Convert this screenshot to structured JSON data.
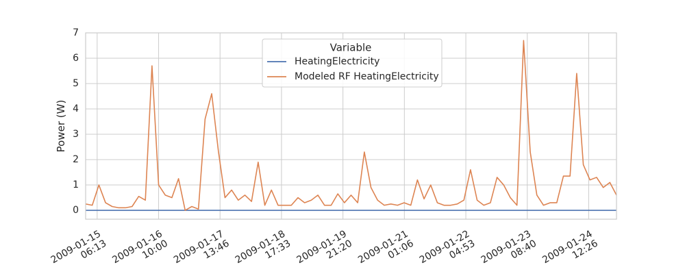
{
  "chart_data": {
    "type": "line",
    "ylabel": "Power (W)",
    "legend_title": "Variable",
    "legend_loc": "upper center",
    "grid": true,
    "x": [
      "2009-01-15 01:00",
      "2009-01-15 04:00",
      "2009-01-15 07:00",
      "2009-01-15 10:00",
      "2009-01-15 13:00",
      "2009-01-15 16:00",
      "2009-01-15 19:00",
      "2009-01-15 22:00",
      "2009-01-16 01:00",
      "2009-01-16 04:00",
      "2009-01-16 07:00",
      "2009-01-16 10:00",
      "2009-01-16 13:00",
      "2009-01-16 16:00",
      "2009-01-16 19:00",
      "2009-01-16 22:00",
      "2009-01-17 01:00",
      "2009-01-17 04:00",
      "2009-01-17 07:00",
      "2009-01-17 10:00",
      "2009-01-17 13:00",
      "2009-01-17 16:00",
      "2009-01-17 19:00",
      "2009-01-17 22:00",
      "2009-01-18 01:00",
      "2009-01-18 04:00",
      "2009-01-18 07:00",
      "2009-01-18 10:00",
      "2009-01-18 13:00",
      "2009-01-18 16:00",
      "2009-01-18 19:00",
      "2009-01-18 22:00",
      "2009-01-19 01:00",
      "2009-01-19 04:00",
      "2009-01-19 07:00",
      "2009-01-19 10:00",
      "2009-01-19 13:00",
      "2009-01-19 16:00",
      "2009-01-19 19:00",
      "2009-01-19 22:00",
      "2009-01-20 01:00",
      "2009-01-20 04:00",
      "2009-01-20 07:00",
      "2009-01-20 10:00",
      "2009-01-20 13:00",
      "2009-01-20 16:00",
      "2009-01-20 19:00",
      "2009-01-20 22:00",
      "2009-01-21 01:00",
      "2009-01-21 04:00",
      "2009-01-21 07:00",
      "2009-01-21 10:00",
      "2009-01-21 13:00",
      "2009-01-21 16:00",
      "2009-01-21 19:00",
      "2009-01-21 22:00",
      "2009-01-22 01:00",
      "2009-01-22 04:00",
      "2009-01-22 07:00",
      "2009-01-22 10:00",
      "2009-01-22 13:00",
      "2009-01-22 16:00",
      "2009-01-22 19:00",
      "2009-01-22 22:00",
      "2009-01-23 01:00",
      "2009-01-23 04:00",
      "2009-01-23 07:00",
      "2009-01-23 10:00",
      "2009-01-23 13:00",
      "2009-01-23 16:00",
      "2009-01-23 19:00",
      "2009-01-23 22:00",
      "2009-01-24 01:00",
      "2009-01-24 04:00",
      "2009-01-24 07:00",
      "2009-01-24 10:00",
      "2009-01-24 13:00",
      "2009-01-24 16:00",
      "2009-01-24 19:00",
      "2009-01-24 22:00",
      "2009-01-25 01:00"
    ],
    "series": [
      {
        "name": "HeatingElectricity",
        "color": "#4c72b0",
        "values": [
          0,
          0,
          0,
          0,
          0,
          0,
          0,
          0,
          0,
          0,
          0,
          0,
          0,
          0,
          0,
          0,
          0,
          0,
          0,
          0,
          0,
          0,
          0,
          0,
          0,
          0,
          0,
          0,
          0,
          0,
          0,
          0,
          0,
          0,
          0,
          0,
          0,
          0,
          0,
          0,
          0,
          0,
          0,
          0,
          0,
          0,
          0,
          0,
          0,
          0,
          0,
          0,
          0,
          0,
          0,
          0,
          0,
          0,
          0,
          0,
          0,
          0,
          0,
          0,
          0,
          0,
          0,
          0,
          0,
          0,
          0,
          0,
          0,
          0,
          0,
          0,
          0,
          0,
          0,
          0,
          0
        ]
      },
      {
        "name": "Modeled RF HeatingElectricity",
        "color": "#dd8452",
        "values": [
          0.25,
          0.2,
          1.0,
          0.3,
          0.15,
          0.1,
          0.1,
          0.15,
          0.55,
          0.4,
          5.7,
          1.0,
          0.6,
          0.5,
          1.25,
          0.0,
          0.15,
          0.05,
          3.6,
          4.6,
          2.35,
          0.5,
          0.8,
          0.4,
          0.6,
          0.35,
          1.9,
          0.2,
          0.8,
          0.2,
          0.2,
          0.2,
          0.5,
          0.3,
          0.4,
          0.6,
          0.2,
          0.2,
          0.65,
          0.3,
          0.6,
          0.3,
          2.3,
          0.9,
          0.4,
          0.2,
          0.25,
          0.2,
          0.3,
          0.2,
          1.2,
          0.45,
          1.0,
          0.3,
          0.2,
          0.2,
          0.25,
          0.4,
          1.6,
          0.4,
          0.2,
          0.3,
          1.3,
          1.0,
          0.5,
          0.2,
          6.7,
          2.3,
          0.6,
          0.2,
          0.3,
          0.3,
          1.35,
          1.35,
          5.4,
          1.8,
          1.2,
          1.3,
          0.9,
          1.1,
          0.6
        ]
      }
    ],
    "xlim": [
      "2009-01-15 01:00",
      "2009-01-25 01:00"
    ],
    "xticks": [
      {
        "value": "2009-01-15 06:13",
        "label": [
          "2009-01-15",
          "06:13"
        ]
      },
      {
        "value": "2009-01-16 10:00",
        "label": [
          "2009-01-16",
          "10:00"
        ]
      },
      {
        "value": "2009-01-17 13:46",
        "label": [
          "2009-01-17",
          "13:46"
        ]
      },
      {
        "value": "2009-01-18 17:33",
        "label": [
          "2009-01-18",
          "17:33"
        ]
      },
      {
        "value": "2009-01-19 21:20",
        "label": [
          "2009-01-19",
          "21:20"
        ]
      },
      {
        "value": "2009-01-21 01:06",
        "label": [
          "2009-01-21",
          "01:06"
        ]
      },
      {
        "value": "2009-01-22 04:53",
        "label": [
          "2009-01-22",
          "04:53"
        ]
      },
      {
        "value": "2009-01-23 08:40",
        "label": [
          "2009-01-23",
          "08:40"
        ]
      },
      {
        "value": "2009-01-24 12:26",
        "label": [
          "2009-01-24",
          "12:26"
        ]
      }
    ],
    "ylim": [
      -0.35,
      7
    ],
    "yticks": [
      0,
      1,
      2,
      3,
      4,
      5,
      6,
      7
    ]
  }
}
